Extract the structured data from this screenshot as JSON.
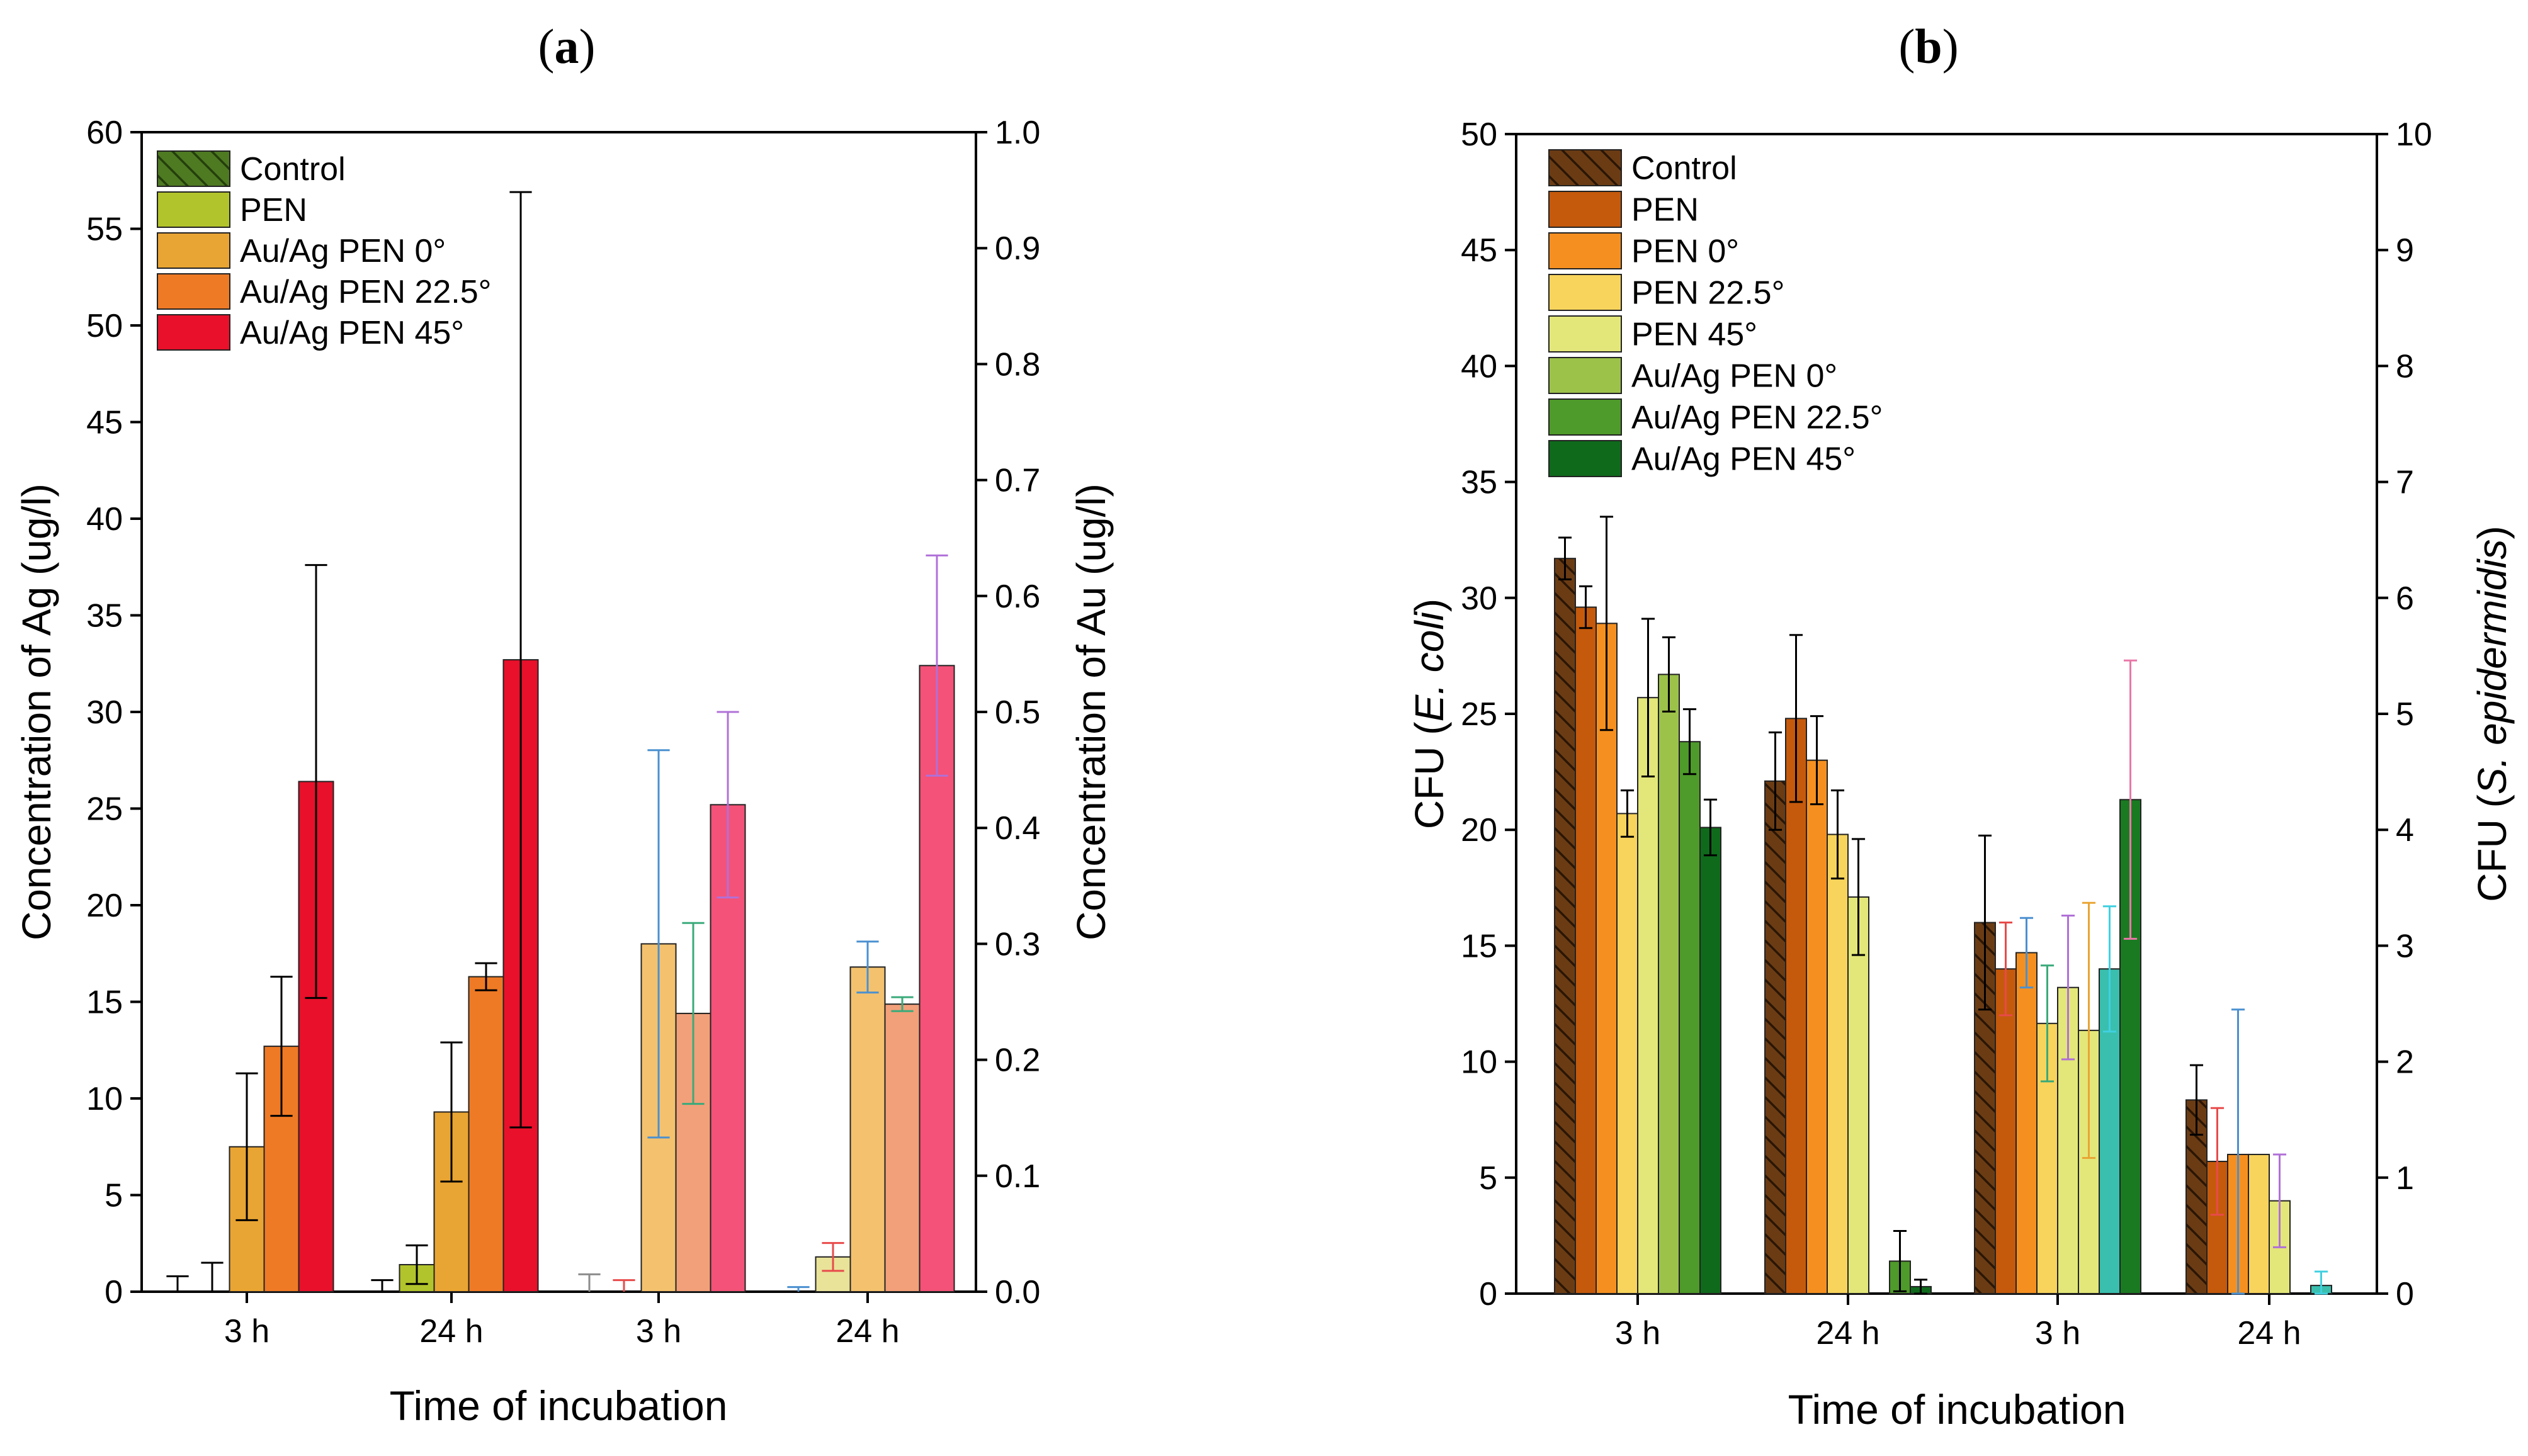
{
  "chart_data": [
    {
      "panel_label": "(a)",
      "panel_letter": "a",
      "type": "bar",
      "title": "",
      "xlabel": "Time of incubation",
      "ylabel_left": "Concentration of Ag (ug/l)",
      "ylabel_right": "Concentration of Au (ug/l)",
      "ylim_left": [
        0,
        60
      ],
      "ylim_right": [
        0,
        1.0
      ],
      "yticks_left": [
        "0",
        "5",
        "10",
        "15",
        "20",
        "25",
        "30",
        "35",
        "40",
        "45",
        "50",
        "55",
        "60"
      ],
      "yticks_right": [
        "0.0",
        "0.1",
        "0.2",
        "0.3",
        "0.4",
        "0.5",
        "0.6",
        "0.7",
        "0.8",
        "0.9",
        "1.0"
      ],
      "categories": [
        "3 h",
        "24 h",
        "3 h",
        "24 h"
      ],
      "legend_position": "top-left",
      "legend": [
        {
          "name": "Control",
          "color": "#4e7a22",
          "hatch": true
        },
        {
          "name": "PEN",
          "color": "#b2c42b",
          "hatch": false
        },
        {
          "name": "Au/Ag PEN 0°",
          "color": "#e9a533",
          "hatch": false
        },
        {
          "name": "Au/Ag PEN 22.5°",
          "color": "#ef7a25",
          "hatch": false
        },
        {
          "name": "Au/Ag PEN 45°",
          "color": "#e8102b",
          "hatch": false
        }
      ],
      "groups": [
        {
          "category": "3 h",
          "axis": "left",
          "bars": [
            {
              "series": "Control",
              "value": 0,
              "err": 0.8,
              "color": "#4e7a22",
              "hatch": true,
              "errColor": "#000000"
            },
            {
              "series": "PEN",
              "value": 0,
              "err": 1.5,
              "color": "#b2c42b",
              "hatch": false,
              "errColor": "#000000"
            },
            {
              "series": "Au/Ag PEN 0°",
              "value": 7.5,
              "err": 3.8,
              "color": "#e9a533",
              "hatch": false,
              "errColor": "#000000"
            },
            {
              "series": "Au/Ag PEN 22.5°",
              "value": 12.7,
              "err": 3.6,
              "color": "#ef7a25",
              "hatch": false,
              "errColor": "#000000"
            },
            {
              "series": "Au/Ag PEN 45°",
              "value": 26.4,
              "err": 11.2,
              "color": "#e8102b",
              "hatch": false,
              "errColor": "#000000"
            }
          ]
        },
        {
          "category": "24 h",
          "axis": "left",
          "bars": [
            {
              "series": "Control",
              "value": 0,
              "err": 0.6,
              "color": "#4e7a22",
              "hatch": true,
              "errColor": "#000000"
            },
            {
              "series": "PEN",
              "value": 1.4,
              "err": 1.0,
              "color": "#b2c42b",
              "hatch": false,
              "errColor": "#000000"
            },
            {
              "series": "Au/Ag PEN 0°",
              "value": 9.3,
              "err": 3.6,
              "color": "#e9a533",
              "hatch": false,
              "errColor": "#000000"
            },
            {
              "series": "Au/Ag PEN 22.5°",
              "value": 16.3,
              "err": 0.7,
              "color": "#ef7a25",
              "hatch": false,
              "errColor": "#000000"
            },
            {
              "series": "Au/Ag PEN 45°",
              "value": 32.7,
              "err": 24.2,
              "color": "#e8102b",
              "hatch": false,
              "errColor": "#000000"
            }
          ]
        },
        {
          "category": "3 h",
          "axis": "right",
          "bars": [
            {
              "series": "Control",
              "value": 0,
              "err": 0.015,
              "color": "#b5c98e",
              "hatch": false,
              "errColor": "#8c8c8c"
            },
            {
              "series": "PEN",
              "value": 0,
              "err": 0.01,
              "color": "#e9e39a",
              "hatch": false,
              "errColor": "#e84a4a"
            },
            {
              "series": "Au/Ag PEN 0°",
              "value": 0.3,
              "err": 0.167,
              "color": "#f4c26e",
              "hatch": false,
              "errColor": "#4a90d0"
            },
            {
              "series": "Au/Ag PEN 22.5°",
              "value": 0.24,
              "err": 0.078,
              "color": "#f2a07a",
              "hatch": false,
              "errColor": "#3aaa7a"
            },
            {
              "series": "Au/Ag PEN 45°",
              "value": 0.42,
              "err": 0.08,
              "color": "#f45278",
              "hatch": false,
              "errColor": "#b070d8"
            }
          ]
        },
        {
          "category": "24 h",
          "axis": "right",
          "bars": [
            {
              "series": "Control",
              "value": 0,
              "err": 0.004,
              "color": "#b5c98e",
              "hatch": false,
              "errColor": "#4a90d0"
            },
            {
              "series": "PEN",
              "value": 0.03,
              "err": 0.012,
              "color": "#e9e39a",
              "hatch": false,
              "errColor": "#e84a4a"
            },
            {
              "series": "Au/Ag PEN 0°",
              "value": 0.28,
              "err": 0.022,
              "color": "#f4c26e",
              "hatch": false,
              "errColor": "#4a90d0"
            },
            {
              "series": "Au/Ag PEN 22.5°",
              "value": 0.248,
              "err": 0.006,
              "color": "#f2a07a",
              "hatch": false,
              "errColor": "#3aaa7a"
            },
            {
              "series": "Au/Ag PEN 45°",
              "value": 0.54,
              "err": 0.095,
              "color": "#f45278",
              "hatch": false,
              "errColor": "#b070d8"
            }
          ]
        }
      ]
    },
    {
      "panel_label": "(b)",
      "panel_letter": "b",
      "type": "bar",
      "title": "",
      "xlabel": "Time of incubation",
      "ylabel_left_parts": [
        "CFU (",
        "E. coli",
        ")"
      ],
      "ylabel_right_parts": [
        "CFU (",
        "S. epidermidis",
        ")"
      ],
      "ylim_left": [
        0,
        50
      ],
      "ylim_right": [
        0,
        10
      ],
      "yticks_left": [
        "0",
        "5",
        "10",
        "15",
        "20",
        "25",
        "30",
        "35",
        "40",
        "45",
        "50"
      ],
      "yticks_right": [
        "0",
        "1",
        "2",
        "3",
        "4",
        "5",
        "6",
        "7",
        "8",
        "9",
        "10"
      ],
      "categories": [
        "3 h",
        "24 h",
        "3 h",
        "24 h"
      ],
      "legend_position": "top-left",
      "legend": [
        {
          "name": "Control",
          "color": "#6b3c14",
          "hatch": true
        },
        {
          "name": "PEN",
          "color": "#c55a0c",
          "hatch": false
        },
        {
          "name": "PEN 0°",
          "color": "#f59020",
          "hatch": false
        },
        {
          "name": "PEN 22.5°",
          "color": "#f8d45c",
          "hatch": false
        },
        {
          "name": "PEN 45°",
          "color": "#e3e77a",
          "hatch": false
        },
        {
          "name": "Au/Ag PEN 0°",
          "color": "#9cc24a",
          "hatch": false
        },
        {
          "name": "Au/Ag PEN 22.5°",
          "color": "#4e9a2a",
          "hatch": false
        },
        {
          "name": "Au/Ag PEN 45°",
          "color": "#0f6a1c",
          "hatch": false
        }
      ],
      "groups": [
        {
          "category": "3 h",
          "axis": "left",
          "bars": [
            {
              "series": "Control",
              "value": 31.7,
              "err": 0.9,
              "color": "#6b3c14",
              "hatch": true,
              "errColor": "#000000"
            },
            {
              "series": "PEN",
              "value": 29.6,
              "err": 0.9,
              "color": "#c55a0c",
              "hatch": false,
              "errColor": "#000000"
            },
            {
              "series": "PEN 0°",
              "value": 28.9,
              "err": 4.6,
              "color": "#f59020",
              "hatch": false,
              "errColor": "#000000"
            },
            {
              "series": "PEN 22.5°",
              "value": 20.7,
              "err": 1.0,
              "color": "#f8d45c",
              "hatch": false,
              "errColor": "#000000"
            },
            {
              "series": "PEN 45°",
              "value": 25.7,
              "err": 3.4,
              "color": "#e3e77a",
              "hatch": false,
              "errColor": "#000000"
            },
            {
              "series": "Au/Ag PEN 0°",
              "value": 26.7,
              "err": 1.6,
              "color": "#9cc24a",
              "hatch": false,
              "errColor": "#000000"
            },
            {
              "series": "Au/Ag PEN 22.5°",
              "value": 23.8,
              "err": 1.4,
              "color": "#4e9a2a",
              "hatch": false,
              "errColor": "#000000"
            },
            {
              "series": "Au/Ag PEN 45°",
              "value": 20.1,
              "err": 1.2,
              "color": "#0f6a1c",
              "hatch": false,
              "errColor": "#000000"
            }
          ]
        },
        {
          "category": "24 h",
          "axis": "left",
          "bars": [
            {
              "series": "Control",
              "value": 22.1,
              "err": 2.1,
              "color": "#6b3c14",
              "hatch": true,
              "errColor": "#000000"
            },
            {
              "series": "PEN",
              "value": 24.8,
              "err": 3.6,
              "color": "#c55a0c",
              "hatch": false,
              "errColor": "#000000"
            },
            {
              "series": "PEN 0°",
              "value": 23.0,
              "err": 1.9,
              "color": "#f59020",
              "hatch": false,
              "errColor": "#000000"
            },
            {
              "series": "PEN 22.5°",
              "value": 19.8,
              "err": 1.9,
              "color": "#f8d45c",
              "hatch": false,
              "errColor": "#000000"
            },
            {
              "series": "PEN 45°",
              "value": 17.1,
              "err": 2.5,
              "color": "#e3e77a",
              "hatch": false,
              "errColor": "#000000"
            },
            {
              "series": "Au/Ag PEN 0°",
              "value": 0,
              "err": 0,
              "color": "#9cc24a",
              "hatch": false,
              "errColor": "#000000"
            },
            {
              "series": "Au/Ag PEN 22.5°",
              "value": 1.4,
              "err": 1.3,
              "color": "#4e9a2a",
              "hatch": false,
              "errColor": "#000000"
            },
            {
              "series": "Au/Ag PEN 45°",
              "value": 0.3,
              "err": 0.3,
              "color": "#0f6a1c",
              "hatch": false,
              "errColor": "#000000"
            }
          ]
        },
        {
          "category": "3 h",
          "axis": "right",
          "bars": [
            {
              "series": "Control",
              "value": 3.2,
              "err": 0.75,
              "color": "#6b3c14",
              "hatch": true,
              "errColor": "#000000"
            },
            {
              "series": "PEN",
              "value": 2.8,
              "err": 0.4,
              "color": "#c55a0c",
              "hatch": false,
              "errColor": "#e84a4a"
            },
            {
              "series": "PEN 0°",
              "value": 2.94,
              "err": 0.3,
              "color": "#f59020",
              "hatch": false,
              "errColor": "#4a90d0"
            },
            {
              "series": "PEN 22.5°",
              "value": 2.33,
              "err": 0.5,
              "color": "#f8d45c",
              "hatch": false,
              "errColor": "#3aaa7a"
            },
            {
              "series": "PEN 45°",
              "value": 2.64,
              "err": 0.62,
              "color": "#e3e77a",
              "hatch": false,
              "errColor": "#b070d8"
            },
            {
              "series": "Au/Ag PEN 0°",
              "value": 2.27,
              "err": 1.1,
              "color": "#e3e77a",
              "hatch": false,
              "errColor": "#e9a533"
            },
            {
              "series": "Au/Ag PEN 22.5°",
              "value": 2.8,
              "err": 0.54,
              "color": "#3abfae",
              "hatch": false,
              "errColor": "#40d0e0"
            },
            {
              "series": "Au/Ag PEN 45°",
              "value": 4.26,
              "err": 1.2,
              "color": "#1a7a22",
              "hatch": false,
              "errColor": "#e878a8"
            }
          ]
        },
        {
          "category": "24 h",
          "axis": "right",
          "bars": [
            {
              "series": "Control",
              "value": 1.67,
              "err": 0.3,
              "color": "#6b3c14",
              "hatch": true,
              "errColor": "#000000"
            },
            {
              "series": "PEN",
              "value": 1.14,
              "err": 0.46,
              "color": "#c55a0c",
              "hatch": false,
              "errColor": "#e84a4a"
            },
            {
              "series": "PEN 0°",
              "value": 1.2,
              "err": 1.25,
              "color": "#f59020",
              "hatch": false,
              "errColor": "#4a90d0"
            },
            {
              "series": "PEN 22.5°",
              "value": 1.2,
              "err": 0,
              "color": "#f8d45c",
              "hatch": false,
              "errColor": "#3aaa7a"
            },
            {
              "series": "PEN 45°",
              "value": 0.8,
              "err": 0.4,
              "color": "#e3e77a",
              "hatch": false,
              "errColor": "#b070d8"
            },
            {
              "series": "Au/Ag PEN 0°",
              "value": 0,
              "err": 0,
              "color": "#e3e77a",
              "hatch": false,
              "errColor": "#e9a533"
            },
            {
              "series": "Au/Ag PEN 22.5°",
              "value": 0.07,
              "err": 0.12,
              "color": "#3abfae",
              "hatch": false,
              "errColor": "#40d0e0"
            },
            {
              "series": "Au/Ag PEN 45°",
              "value": 0,
              "err": 0,
              "color": "#1a7a22",
              "hatch": false,
              "errColor": "#e878a8"
            }
          ]
        }
      ]
    }
  ]
}
